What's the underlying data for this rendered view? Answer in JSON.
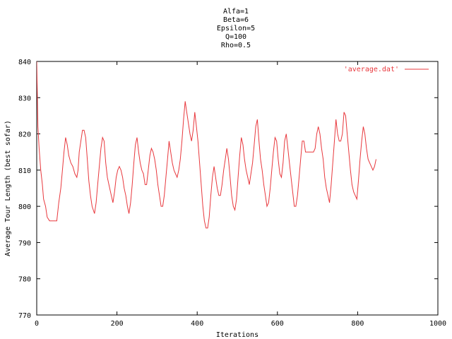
{
  "chart_data": {
    "type": "line",
    "title_lines": [
      "Alfa=1",
      "Beta=6",
      "Epsilon=5",
      "Q=100",
      "Rho=0.5"
    ],
    "xlabel": "Iterations",
    "ylabel": "Average Tour Length (best sofar)",
    "xlim": [
      0,
      1000
    ],
    "ylim": [
      770,
      840
    ],
    "xticks": [
      0,
      200,
      400,
      600,
      800,
      1000
    ],
    "yticks": [
      770,
      780,
      790,
      800,
      810,
      820,
      830,
      840
    ],
    "grid": false,
    "legend_position": "top-right",
    "line_color": "#e8383d",
    "series": [
      {
        "name": "'average.dat'",
        "points": [
          [
            0,
            840
          ],
          [
            3,
            822
          ],
          [
            6,
            816
          ],
          [
            10,
            810
          ],
          [
            14,
            806
          ],
          [
            17,
            802
          ],
          [
            22,
            800
          ],
          [
            26,
            797
          ],
          [
            32,
            796
          ],
          [
            40,
            796
          ],
          [
            50,
            796
          ],
          [
            55,
            801
          ],
          [
            60,
            805
          ],
          [
            64,
            810
          ],
          [
            68,
            815
          ],
          [
            72,
            819
          ],
          [
            76,
            817
          ],
          [
            80,
            814
          ],
          [
            85,
            812
          ],
          [
            90,
            811
          ],
          [
            95,
            809
          ],
          [
            100,
            808
          ],
          [
            103,
            810
          ],
          [
            106,
            815
          ],
          [
            110,
            818
          ],
          [
            114,
            821
          ],
          [
            118,
            821
          ],
          [
            122,
            819
          ],
          [
            126,
            813
          ],
          [
            130,
            807
          ],
          [
            134,
            803
          ],
          [
            138,
            800
          ],
          [
            144,
            798
          ],
          [
            148,
            801
          ],
          [
            152,
            806
          ],
          [
            156,
            811
          ],
          [
            160,
            816
          ],
          [
            164,
            819
          ],
          [
            168,
            818
          ],
          [
            172,
            812
          ],
          [
            176,
            808
          ],
          [
            180,
            806
          ],
          [
            186,
            803
          ],
          [
            190,
            801
          ],
          [
            194,
            804
          ],
          [
            198,
            808
          ],
          [
            202,
            810
          ],
          [
            206,
            811
          ],
          [
            210,
            810
          ],
          [
            214,
            808
          ],
          [
            218,
            805
          ],
          [
            222,
            803
          ],
          [
            226,
            800
          ],
          [
            230,
            798
          ],
          [
            234,
            801
          ],
          [
            238,
            806
          ],
          [
            242,
            812
          ],
          [
            246,
            817
          ],
          [
            250,
            819
          ],
          [
            254,
            815
          ],
          [
            258,
            812
          ],
          [
            262,
            810
          ],
          [
            266,
            809
          ],
          [
            270,
            806
          ],
          [
            274,
            806
          ],
          [
            278,
            810
          ],
          [
            282,
            814
          ],
          [
            286,
            816
          ],
          [
            290,
            815
          ],
          [
            294,
            813
          ],
          [
            298,
            810
          ],
          [
            302,
            806
          ],
          [
            306,
            803
          ],
          [
            310,
            800
          ],
          [
            314,
            800
          ],
          [
            318,
            803
          ],
          [
            322,
            808
          ],
          [
            326,
            813
          ],
          [
            330,
            818
          ],
          [
            334,
            815
          ],
          [
            338,
            812
          ],
          [
            342,
            810
          ],
          [
            346,
            809
          ],
          [
            350,
            808
          ],
          [
            354,
            810
          ],
          [
            358,
            813
          ],
          [
            362,
            818
          ],
          [
            366,
            824
          ],
          [
            370,
            829
          ],
          [
            374,
            826
          ],
          [
            378,
            823
          ],
          [
            382,
            820
          ],
          [
            386,
            818
          ],
          [
            390,
            821
          ],
          [
            394,
            826
          ],
          [
            398,
            822
          ],
          [
            402,
            818
          ],
          [
            406,
            812
          ],
          [
            410,
            806
          ],
          [
            414,
            800
          ],
          [
            418,
            796
          ],
          [
            422,
            794
          ],
          [
            426,
            794
          ],
          [
            430,
            797
          ],
          [
            434,
            803
          ],
          [
            438,
            808
          ],
          [
            442,
            811
          ],
          [
            446,
            808
          ],
          [
            450,
            805
          ],
          [
            454,
            803
          ],
          [
            458,
            803
          ],
          [
            462,
            806
          ],
          [
            466,
            810
          ],
          [
            470,
            813
          ],
          [
            474,
            816
          ],
          [
            478,
            813
          ],
          [
            482,
            808
          ],
          [
            486,
            803
          ],
          [
            490,
            800
          ],
          [
            494,
            799
          ],
          [
            498,
            802
          ],
          [
            502,
            808
          ],
          [
            506,
            814
          ],
          [
            510,
            819
          ],
          [
            514,
            817
          ],
          [
            518,
            813
          ],
          [
            522,
            810
          ],
          [
            526,
            808
          ],
          [
            530,
            806
          ],
          [
            534,
            809
          ],
          [
            538,
            812
          ],
          [
            542,
            817
          ],
          [
            546,
            822
          ],
          [
            550,
            824
          ],
          [
            554,
            818
          ],
          [
            558,
            813
          ],
          [
            562,
            810
          ],
          [
            566,
            806
          ],
          [
            570,
            803
          ],
          [
            574,
            800
          ],
          [
            578,
            801
          ],
          [
            582,
            805
          ],
          [
            586,
            810
          ],
          [
            590,
            815
          ],
          [
            594,
            819
          ],
          [
            598,
            818
          ],
          [
            602,
            813
          ],
          [
            606,
            809
          ],
          [
            610,
            808
          ],
          [
            614,
            812
          ],
          [
            618,
            818
          ],
          [
            622,
            820
          ],
          [
            626,
            816
          ],
          [
            630,
            812
          ],
          [
            634,
            808
          ],
          [
            638,
            804
          ],
          [
            642,
            800
          ],
          [
            646,
            800
          ],
          [
            650,
            803
          ],
          [
            654,
            808
          ],
          [
            658,
            813
          ],
          [
            662,
            818
          ],
          [
            666,
            818
          ],
          [
            670,
            815
          ],
          [
            674,
            815
          ],
          [
            678,
            815
          ],
          [
            682,
            815
          ],
          [
            686,
            815
          ],
          [
            690,
            815
          ],
          [
            694,
            816
          ],
          [
            698,
            820
          ],
          [
            702,
            822
          ],
          [
            706,
            820
          ],
          [
            710,
            816
          ],
          [
            714,
            813
          ],
          [
            718,
            808
          ],
          [
            722,
            805
          ],
          [
            726,
            803
          ],
          [
            730,
            801
          ],
          [
            734,
            806
          ],
          [
            738,
            812
          ],
          [
            742,
            818
          ],
          [
            746,
            824
          ],
          [
            750,
            820
          ],
          [
            754,
            818
          ],
          [
            758,
            818
          ],
          [
            762,
            820
          ],
          [
            766,
            826
          ],
          [
            770,
            825
          ],
          [
            774,
            820
          ],
          [
            778,
            815
          ],
          [
            782,
            810
          ],
          [
            786,
            806
          ],
          [
            790,
            804
          ],
          [
            794,
            803
          ],
          [
            798,
            802
          ],
          [
            802,
            807
          ],
          [
            806,
            813
          ],
          [
            810,
            818
          ],
          [
            814,
            822
          ],
          [
            818,
            820
          ],
          [
            822,
            816
          ],
          [
            826,
            813
          ],
          [
            830,
            812
          ],
          [
            834,
            811
          ],
          [
            838,
            810
          ],
          [
            842,
            811
          ],
          [
            846,
            813
          ]
        ]
      }
    ]
  }
}
